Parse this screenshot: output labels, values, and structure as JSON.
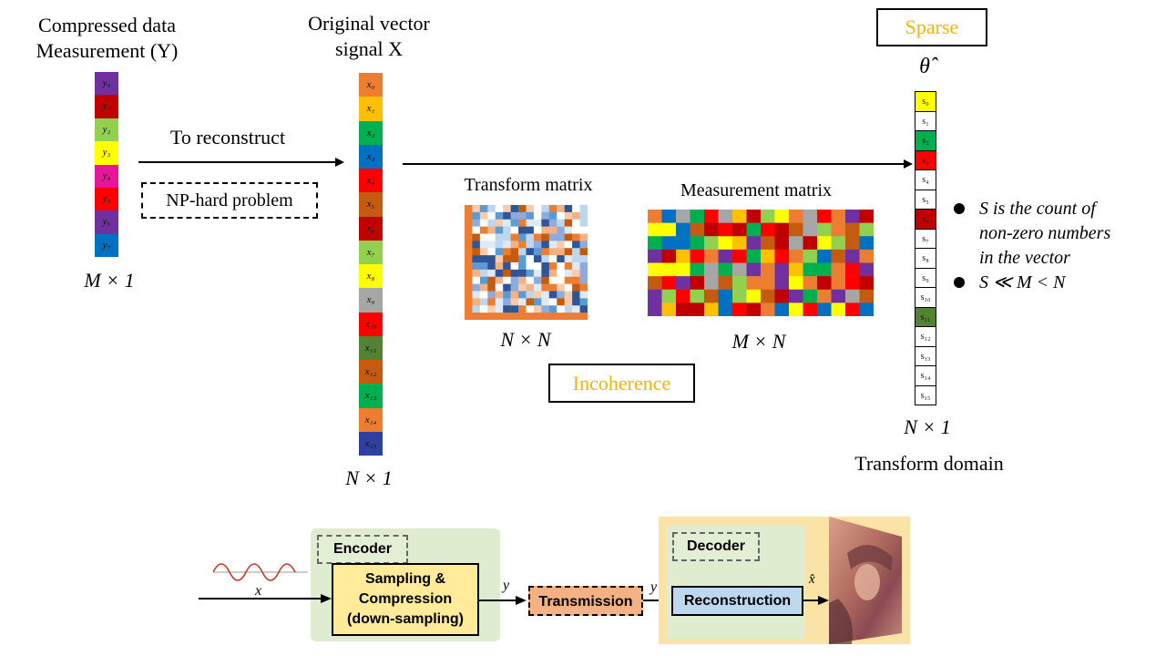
{
  "compressed": {
    "title_line1": "Compressed data",
    "title_line2": "Measurement (Y)",
    "dim": "M × 1",
    "cells": [
      {
        "label": "y₀",
        "color": "#7030a0"
      },
      {
        "label": "y₁",
        "color": "#c00000"
      },
      {
        "label": "y₂",
        "color": "#92d050"
      },
      {
        "label": "y₃",
        "color": "#ffff00"
      },
      {
        "label": "y₄",
        "color": "#e8149a"
      },
      {
        "label": "y₅",
        "color": "#ff0000"
      },
      {
        "label": "y₆",
        "color": "#7030a0"
      },
      {
        "label": "y₇",
        "color": "#0070c0"
      }
    ]
  },
  "arrow1": {
    "label": "To reconstruct",
    "problem": "NP-hard problem"
  },
  "original": {
    "title_line1": "Original vector",
    "title_line2": "signal X",
    "dim": "N × 1",
    "cells": [
      {
        "label": "x₀",
        "color": "#ed7d31"
      },
      {
        "label": "x₁",
        "color": "#ffc000"
      },
      {
        "label": "x₂",
        "color": "#00b050"
      },
      {
        "label": "x₃",
        "color": "#0070c0"
      },
      {
        "label": "x₄",
        "color": "#ff0000"
      },
      {
        "label": "x₅",
        "color": "#c55a11"
      },
      {
        "label": "x₆",
        "color": "#c00000"
      },
      {
        "label": "x₇",
        "color": "#92d050"
      },
      {
        "label": "x₈",
        "color": "#ffff00"
      },
      {
        "label": "x₉",
        "color": "#a6a6a6"
      },
      {
        "label": "x₁₀",
        "color": "#ff0000"
      },
      {
        "label": "x₁₁",
        "color": "#548235"
      },
      {
        "label": "x₁₂",
        "color": "#c55a11"
      },
      {
        "label": "x₁₃",
        "color": "#00b050"
      },
      {
        "label": "x₁₄",
        "color": "#ed7d31"
      },
      {
        "label": "x₁₅",
        "color": "#2f3f9e"
      }
    ]
  },
  "transform_matrix": {
    "title": "Transform matrix",
    "dim": "N × N"
  },
  "measurement_matrix": {
    "title": "Measurement matrix",
    "dim": "M × N",
    "palette": [
      "#c00000",
      "#ff0000",
      "#ffc000",
      "#ffff00",
      "#92d050",
      "#00b050",
      "#0070c0",
      "#7030a0",
      "#ed7d31",
      "#a6a6a6",
      "#c55a11"
    ]
  },
  "incoherence": "Incoherence",
  "sparse": {
    "label": "Sparse",
    "symbol": "θ̂",
    "dim": "N × 1",
    "domain": "Transform domain",
    "cells": [
      {
        "label": "s₀",
        "color": "#ffff00"
      },
      {
        "label": "s₁",
        "color": "#ffffff"
      },
      {
        "label": "s₂",
        "color": "#00b050"
      },
      {
        "label": "s₃",
        "color": "#ff0000"
      },
      {
        "label": "s₄",
        "color": "#ffffff"
      },
      {
        "label": "s₅",
        "color": "#ffffff"
      },
      {
        "label": "s₆",
        "color": "#c00000"
      },
      {
        "label": "s₇",
        "color": "#ffffff"
      },
      {
        "label": "s₈",
        "color": "#ffffff"
      },
      {
        "label": "s₉",
        "color": "#ffffff"
      },
      {
        "label": "s₁₀",
        "color": "#ffffff"
      },
      {
        "label": "s₁₁",
        "color": "#548235"
      },
      {
        "label": "s₁₂",
        "color": "#ffffff"
      },
      {
        "label": "s₁₃",
        "color": "#ffffff"
      },
      {
        "label": "s₁₄",
        "color": "#ffffff"
      },
      {
        "label": "s₁₅",
        "color": "#ffffff"
      }
    ]
  },
  "bullets": {
    "b1_line1": "S is the count of",
    "b1_line2": "non-zero numbers",
    "b1_line3": "in the vector",
    "b2": "S ≪ M < N"
  },
  "pipeline": {
    "encoder": "Encoder",
    "sampling_line1": "Sampling &",
    "sampling_line2": "Compression",
    "sampling_line3": "(down-sampling)",
    "transmission": "Transmission",
    "decoder": "Decoder",
    "reconstruction": "Reconstruction",
    "x_in": "x",
    "y1": "y",
    "y2": "y",
    "x_hat": "x̂"
  }
}
